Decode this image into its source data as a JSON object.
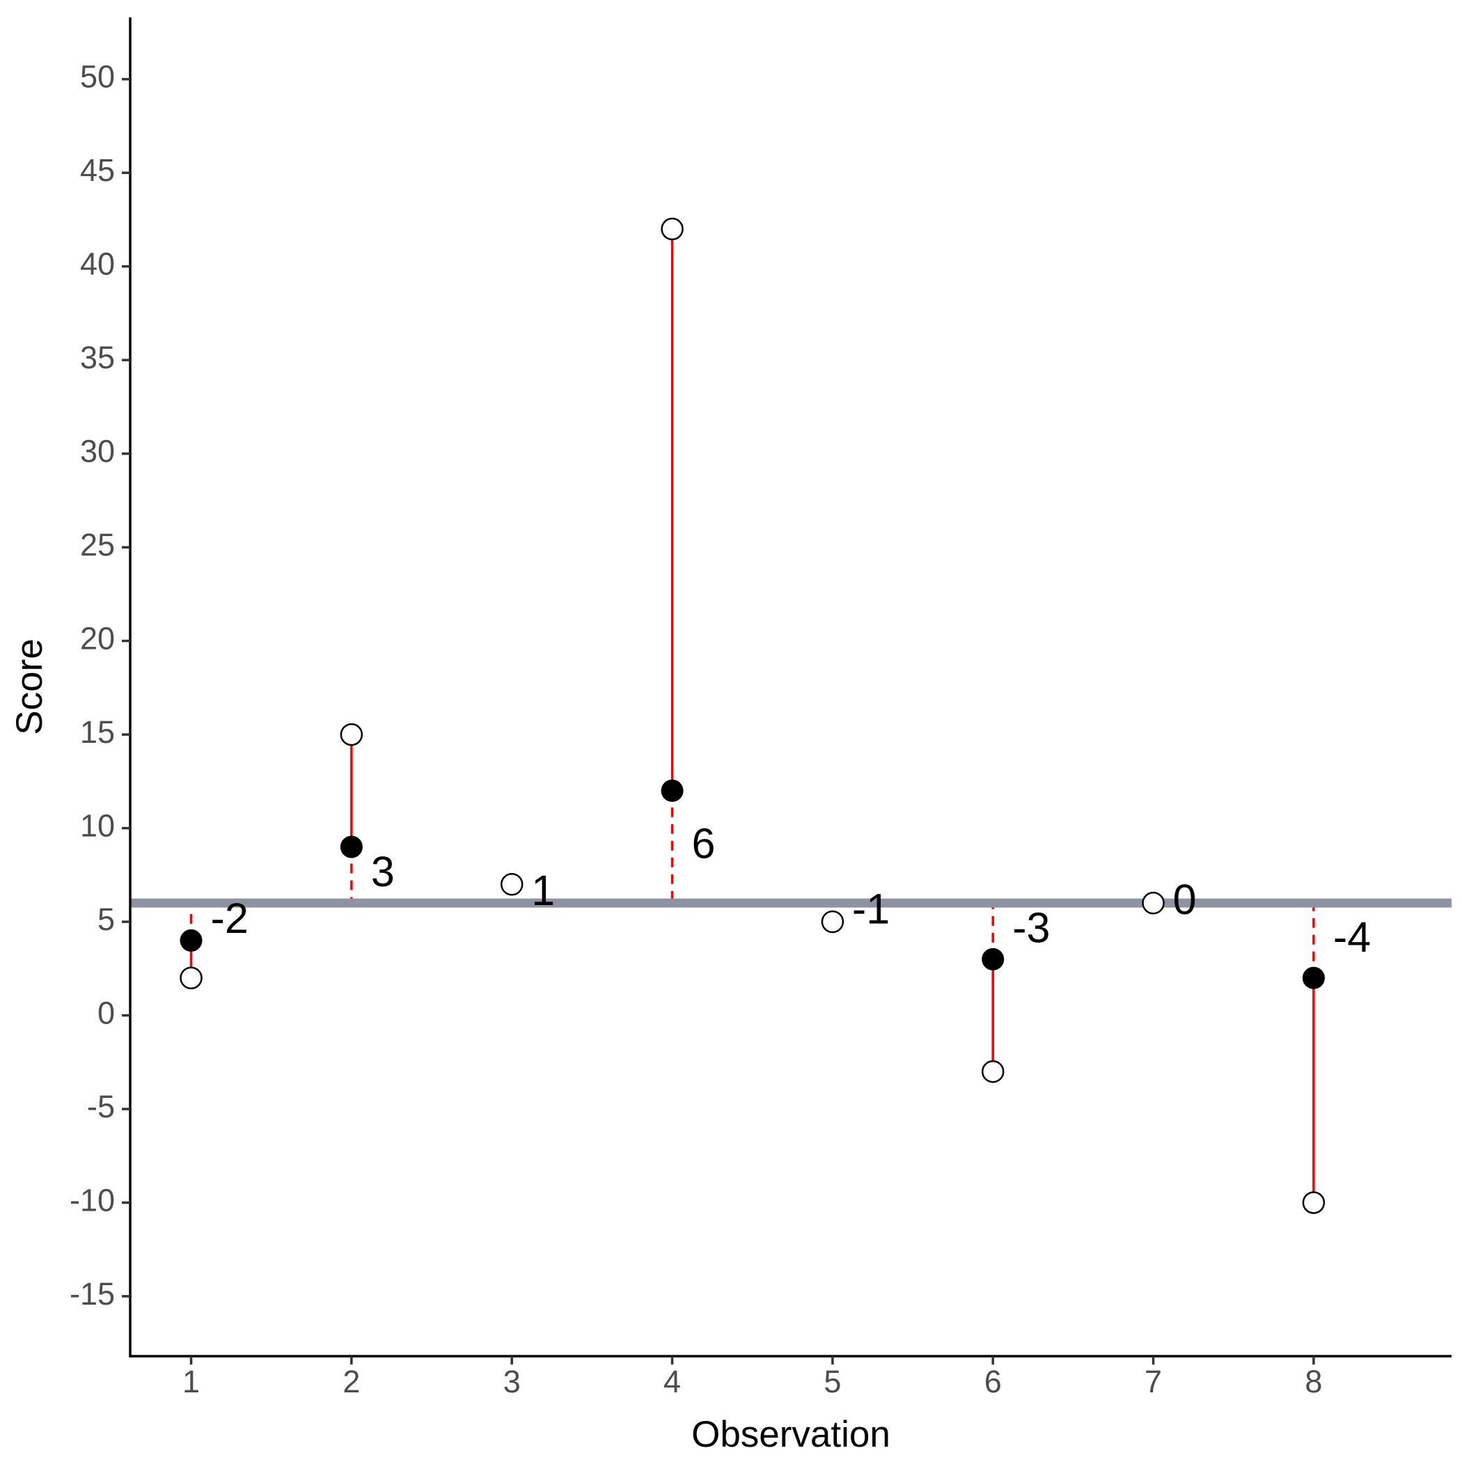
{
  "chart_data": {
    "type": "scatter",
    "title": "",
    "xlabel": "Observation",
    "ylabel": "Score",
    "xlim": [
      0.62,
      8.86
    ],
    "ylim": [
      -18.2,
      53.3
    ],
    "xticks": [
      "1",
      "2",
      "3",
      "4",
      "5",
      "6",
      "7",
      "8"
    ],
    "yticks": [
      "-15",
      "-10",
      "-5",
      "0",
      "5",
      "10",
      "15",
      "20",
      "25",
      "30",
      "35",
      "40",
      "45",
      "50"
    ],
    "grid": false,
    "reference_line": {
      "y": 6,
      "color": "#8e93a3"
    },
    "series": [
      {
        "x": 1,
        "observed": 2,
        "predicted": 4,
        "label": "-2"
      },
      {
        "x": 2,
        "observed": 15,
        "predicted": 9,
        "label": "3"
      },
      {
        "x": 3,
        "observed": 7,
        "predicted": null,
        "label": "1"
      },
      {
        "x": 4,
        "observed": 42,
        "predicted": 12,
        "label": "6"
      },
      {
        "x": 5,
        "observed": 5,
        "predicted": null,
        "label": "-1"
      },
      {
        "x": 6,
        "observed": -3,
        "predicted": 3,
        "label": "-3"
      },
      {
        "x": 7,
        "observed": 6,
        "predicted": null,
        "label": "0"
      },
      {
        "x": 8,
        "observed": -10,
        "predicted": 2,
        "label": "-4"
      }
    ],
    "colors": {
      "segment": "#ff0000",
      "filled_point": "#000000",
      "open_point": "#ffffff"
    }
  }
}
